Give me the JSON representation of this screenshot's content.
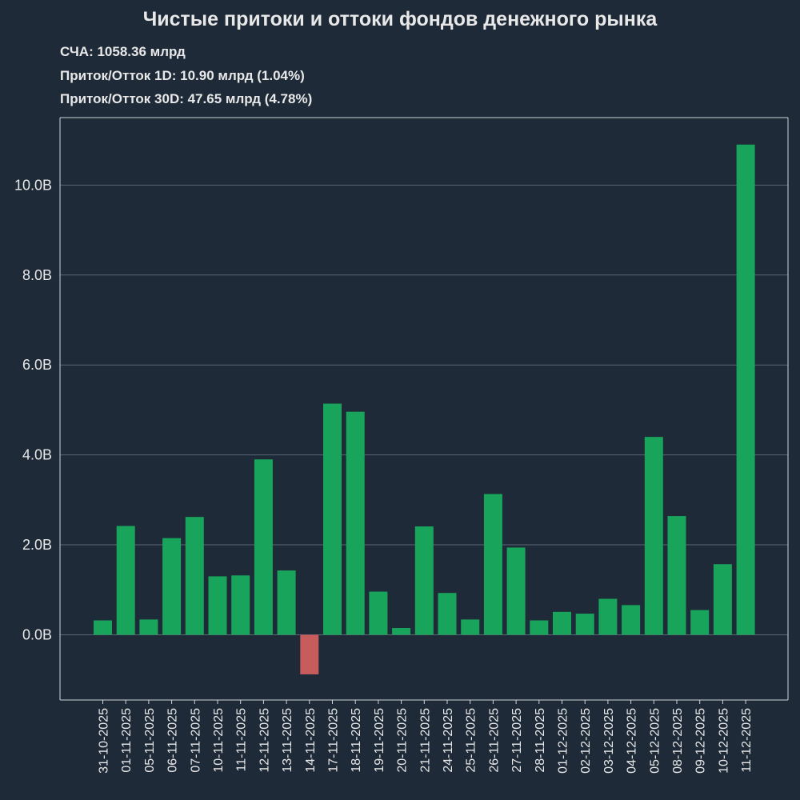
{
  "header": {
    "title": "Чистые притоки и оттоки фондов денежного рынка",
    "nav_line": "СЧА: 1058.36 млрд",
    "flow_1d_line": "Приток/Отток 1D: 10.90 млрд (1.04%)",
    "flow_30d_line": "Приток/Отток 30D: 47.65 млрд (4.78%)"
  },
  "colors": {
    "background": "#1e2a38",
    "positive_bar": "#19a45c",
    "negative_bar": "#c65c5c",
    "grid": "#5a6573",
    "axis": "#d0d4d8",
    "text": "#e8e8e8"
  },
  "chart_data": {
    "type": "bar",
    "title": "Чистые притоки и оттоки фондов денежного рынка",
    "xlabel": "",
    "ylabel": "",
    "ylim": [
      -1.45,
      11.5
    ],
    "yticks": [
      0,
      2,
      4,
      6,
      8,
      10
    ],
    "ytick_labels": [
      "0.0B",
      "2.0B",
      "4.0B",
      "6.0B",
      "8.0B",
      "10.0B"
    ],
    "grid": "horizontal",
    "categories": [
      "31-10-2025",
      "01-11-2025",
      "05-11-2025",
      "06-11-2025",
      "07-11-2025",
      "10-11-2025",
      "11-11-2025",
      "12-11-2025",
      "13-11-2025",
      "14-11-2025",
      "17-11-2025",
      "18-11-2025",
      "19-11-2025",
      "20-11-2025",
      "21-11-2025",
      "24-11-2025",
      "25-11-2025",
      "26-11-2025",
      "27-11-2025",
      "28-11-2025",
      "01-12-2025",
      "02-12-2025",
      "03-12-2025",
      "04-12-2025",
      "05-12-2025",
      "08-12-2025",
      "09-12-2025",
      "10-12-2025",
      "11-12-2025"
    ],
    "values": [
      0.32,
      2.42,
      0.34,
      2.15,
      2.62,
      1.3,
      1.32,
      3.9,
      1.43,
      -0.88,
      5.14,
      4.96,
      0.96,
      0.15,
      2.41,
      0.93,
      0.34,
      3.13,
      1.94,
      0.32,
      0.51,
      0.47,
      0.8,
      0.66,
      4.4,
      2.64,
      0.55,
      1.57,
      10.9
    ]
  }
}
